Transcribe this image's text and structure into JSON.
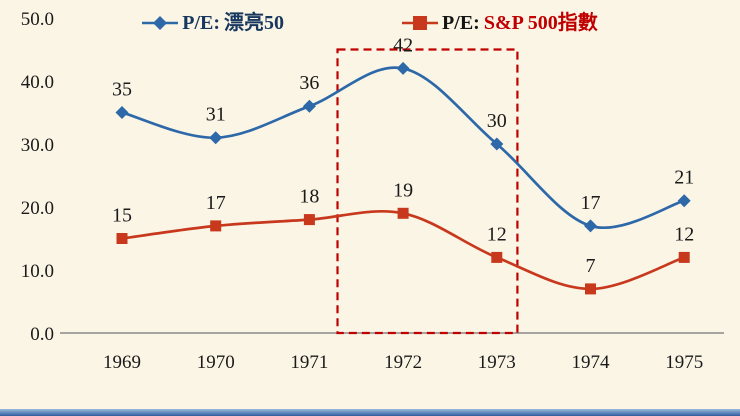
{
  "page": {
    "background": "#FBF5E6",
    "bottom_bar_gradient": [
      "#9BBBDD",
      "#2E5C9E"
    ]
  },
  "legend": {
    "items": [
      {
        "prefix": "P/E:",
        "name": "漂亮50",
        "color": "#2D68A8",
        "name_color": "#17375E",
        "marker": "diamond"
      },
      {
        "prefix": "P/E:",
        "name": "S&P 500指數",
        "color": "#C8381D",
        "name_color": "#C00000",
        "marker": "square"
      }
    ]
  },
  "chart_data": {
    "type": "line",
    "title": "",
    "xlabel": "",
    "ylabel": "",
    "x_categories": [
      "1969",
      "1970",
      "1971",
      "1972",
      "1973",
      "1974",
      "1975"
    ],
    "series": [
      {
        "name": "P/E: 漂亮50",
        "color": "#2D68A8",
        "marker": "diamond",
        "values": [
          35,
          31,
          36,
          42,
          30,
          17,
          21
        ]
      },
      {
        "name": "P/E: S&P 500指數",
        "color": "#C8381D",
        "marker": "square",
        "values": [
          15,
          17,
          18,
          19,
          12,
          7,
          12
        ]
      }
    ],
    "ylim": [
      0,
      50
    ],
    "yticks": [
      "0.0",
      "10.0",
      "20.0",
      "30.0",
      "40.0",
      "50.0"
    ],
    "grid": false,
    "legend_position": "top",
    "data_labels": true,
    "annotation": {
      "type": "dashed-rectangle",
      "color": "#C00000",
      "x_from_index": 2.3,
      "x_to_index": 4.22,
      "y_range": [
        0,
        45
      ]
    }
  }
}
